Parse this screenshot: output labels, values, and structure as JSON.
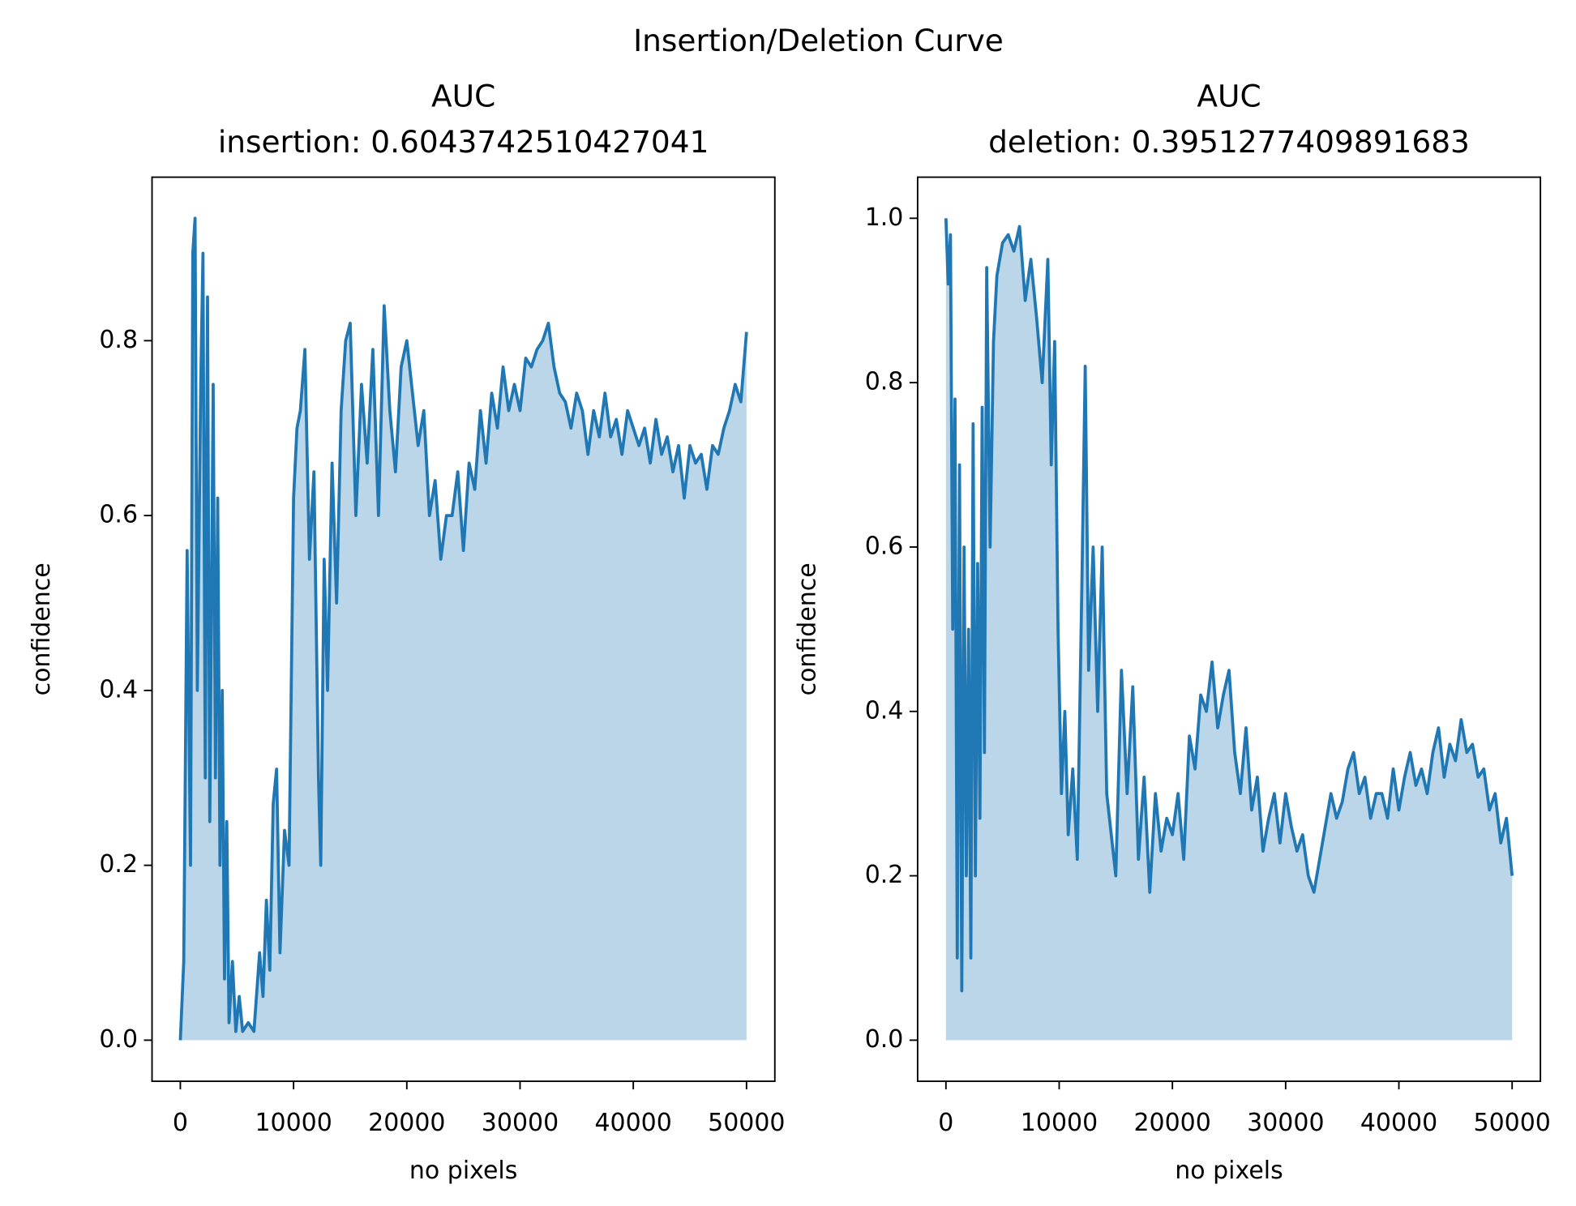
{
  "title": "Insertion/Deletion Curve",
  "chart_data": [
    {
      "type": "line",
      "title": "AUC",
      "subtitle": "insertion: 0.6043742510427041",
      "xlabel": "no pixels",
      "ylabel": "confidence",
      "xlim": [
        -2500,
        52500
      ],
      "ylim": [
        -0.047,
        0.987
      ],
      "xticks": [
        0,
        10000,
        20000,
        30000,
        40000,
        50000
      ],
      "yticks": [
        {
          "value": 0,
          "label": "0.0"
        },
        0.2,
        0.4,
        0.6,
        0.8
      ],
      "fill": true,
      "fill_color": "#bbd6e8",
      "series": [
        {
          "color": "#1f77b4",
          "x": [
            0,
            300,
            600,
            900,
            1100,
            1300,
            1500,
            1800,
            2000,
            2200,
            2400,
            2600,
            2900,
            3100,
            3300,
            3500,
            3700,
            3900,
            4100,
            4300,
            4600,
            4900,
            5200,
            5500,
            6000,
            6500,
            7000,
            7300,
            7600,
            7900,
            8200,
            8500,
            8800,
            9200,
            9600,
            10000,
            10300,
            10600,
            11000,
            11400,
            11800,
            12200,
            12400,
            12700,
            13000,
            13400,
            13800,
            14200,
            14600,
            15000,
            15500,
            16000,
            16500,
            17000,
            17500,
            18000,
            18500,
            19000,
            19500,
            20000,
            20500,
            21000,
            21500,
            22000,
            22500,
            23000,
            23500,
            24000,
            24500,
            25000,
            25500,
            26000,
            26500,
            27000,
            27500,
            28000,
            28500,
            29000,
            29500,
            30000,
            30500,
            31000,
            31500,
            32000,
            32500,
            33000,
            33500,
            34000,
            34500,
            35000,
            35500,
            36000,
            36500,
            37000,
            37500,
            38000,
            38500,
            39000,
            39500,
            40000,
            40500,
            41000,
            41500,
            42000,
            42500,
            43000,
            43500,
            44000,
            44500,
            45000,
            45500,
            46000,
            46500,
            47000,
            47500,
            48000,
            48500,
            49000,
            49500,
            50000
          ],
          "values": [
            0.0,
            0.09,
            0.56,
            0.2,
            0.9,
            0.94,
            0.4,
            0.75,
            0.9,
            0.3,
            0.85,
            0.25,
            0.75,
            0.3,
            0.62,
            0.2,
            0.4,
            0.07,
            0.25,
            0.02,
            0.09,
            0.01,
            0.05,
            0.01,
            0.02,
            0.01,
            0.1,
            0.05,
            0.16,
            0.08,
            0.27,
            0.31,
            0.1,
            0.24,
            0.2,
            0.62,
            0.7,
            0.72,
            0.79,
            0.55,
            0.65,
            0.3,
            0.2,
            0.55,
            0.4,
            0.66,
            0.5,
            0.72,
            0.8,
            0.82,
            0.6,
            0.75,
            0.66,
            0.79,
            0.6,
            0.84,
            0.72,
            0.65,
            0.77,
            0.8,
            0.74,
            0.68,
            0.72,
            0.6,
            0.64,
            0.55,
            0.6,
            0.6,
            0.65,
            0.56,
            0.66,
            0.63,
            0.72,
            0.66,
            0.74,
            0.7,
            0.77,
            0.72,
            0.75,
            0.72,
            0.78,
            0.77,
            0.79,
            0.8,
            0.82,
            0.77,
            0.74,
            0.73,
            0.7,
            0.74,
            0.72,
            0.67,
            0.72,
            0.69,
            0.74,
            0.69,
            0.71,
            0.67,
            0.72,
            0.7,
            0.68,
            0.7,
            0.66,
            0.71,
            0.67,
            0.69,
            0.65,
            0.68,
            0.62,
            0.68,
            0.66,
            0.67,
            0.63,
            0.68,
            0.67,
            0.7,
            0.72,
            0.75,
            0.73,
            0.81
          ]
        }
      ]
    },
    {
      "type": "line",
      "title": "AUC",
      "subtitle": "deletion: 0.3951277409891683",
      "xlabel": "no pixels",
      "ylabel": "confidence",
      "xlim": [
        -2500,
        52500
      ],
      "ylim": [
        -0.05,
        1.05
      ],
      "xticks": [
        0,
        10000,
        20000,
        30000,
        40000,
        50000
      ],
      "yticks": [
        {
          "value": 0,
          "label": "0.0"
        },
        0.2,
        0.4,
        0.6,
        0.8,
        {
          "value": 1,
          "label": "1.0"
        }
      ],
      "fill": true,
      "fill_color": "#bbd6e8",
      "series": [
        {
          "color": "#1f77b4",
          "x": [
            0,
            200,
            400,
            600,
            800,
            1000,
            1200,
            1400,
            1600,
            1800,
            2000,
            2200,
            2400,
            2600,
            2800,
            3000,
            3200,
            3400,
            3600,
            3900,
            4200,
            4500,
            5000,
            5500,
            6000,
            6500,
            7000,
            7500,
            8000,
            8500,
            9000,
            9300,
            9600,
            9900,
            10200,
            10500,
            10800,
            11200,
            11600,
            12000,
            12300,
            12600,
            13000,
            13400,
            13800,
            14200,
            14600,
            15000,
            15500,
            16000,
            16500,
            17000,
            17500,
            18000,
            18500,
            19000,
            19500,
            20000,
            20500,
            21000,
            21500,
            22000,
            22500,
            23000,
            23500,
            24000,
            24500,
            25000,
            25500,
            26000,
            26500,
            27000,
            27500,
            28000,
            28500,
            29000,
            29500,
            30000,
            30500,
            31000,
            31500,
            32000,
            32500,
            33000,
            33500,
            34000,
            34500,
            35000,
            35500,
            36000,
            36500,
            37000,
            37500,
            38000,
            38500,
            39000,
            39500,
            40000,
            40500,
            41000,
            41500,
            42000,
            42500,
            43000,
            43500,
            44000,
            44500,
            45000,
            45500,
            46000,
            46500,
            47000,
            47500,
            48000,
            48500,
            49000,
            49500,
            50000
          ],
          "values": [
            1.0,
            0.92,
            0.98,
            0.5,
            0.78,
            0.1,
            0.7,
            0.06,
            0.6,
            0.2,
            0.5,
            0.1,
            0.75,
            0.2,
            0.58,
            0.27,
            0.77,
            0.35,
            0.94,
            0.6,
            0.85,
            0.93,
            0.97,
            0.98,
            0.96,
            0.99,
            0.9,
            0.95,
            0.88,
            0.8,
            0.95,
            0.7,
            0.85,
            0.5,
            0.3,
            0.4,
            0.25,
            0.33,
            0.22,
            0.55,
            0.82,
            0.45,
            0.6,
            0.4,
            0.6,
            0.3,
            0.25,
            0.2,
            0.45,
            0.3,
            0.43,
            0.22,
            0.32,
            0.18,
            0.3,
            0.23,
            0.27,
            0.25,
            0.3,
            0.22,
            0.37,
            0.33,
            0.42,
            0.4,
            0.46,
            0.38,
            0.42,
            0.45,
            0.35,
            0.3,
            0.38,
            0.28,
            0.32,
            0.23,
            0.27,
            0.3,
            0.24,
            0.3,
            0.26,
            0.23,
            0.25,
            0.2,
            0.18,
            0.22,
            0.26,
            0.3,
            0.27,
            0.29,
            0.33,
            0.35,
            0.3,
            0.32,
            0.27,
            0.3,
            0.3,
            0.27,
            0.33,
            0.28,
            0.32,
            0.35,
            0.31,
            0.33,
            0.3,
            0.35,
            0.38,
            0.32,
            0.36,
            0.34,
            0.39,
            0.35,
            0.36,
            0.32,
            0.33,
            0.28,
            0.3,
            0.24,
            0.27,
            0.2
          ]
        }
      ]
    }
  ]
}
